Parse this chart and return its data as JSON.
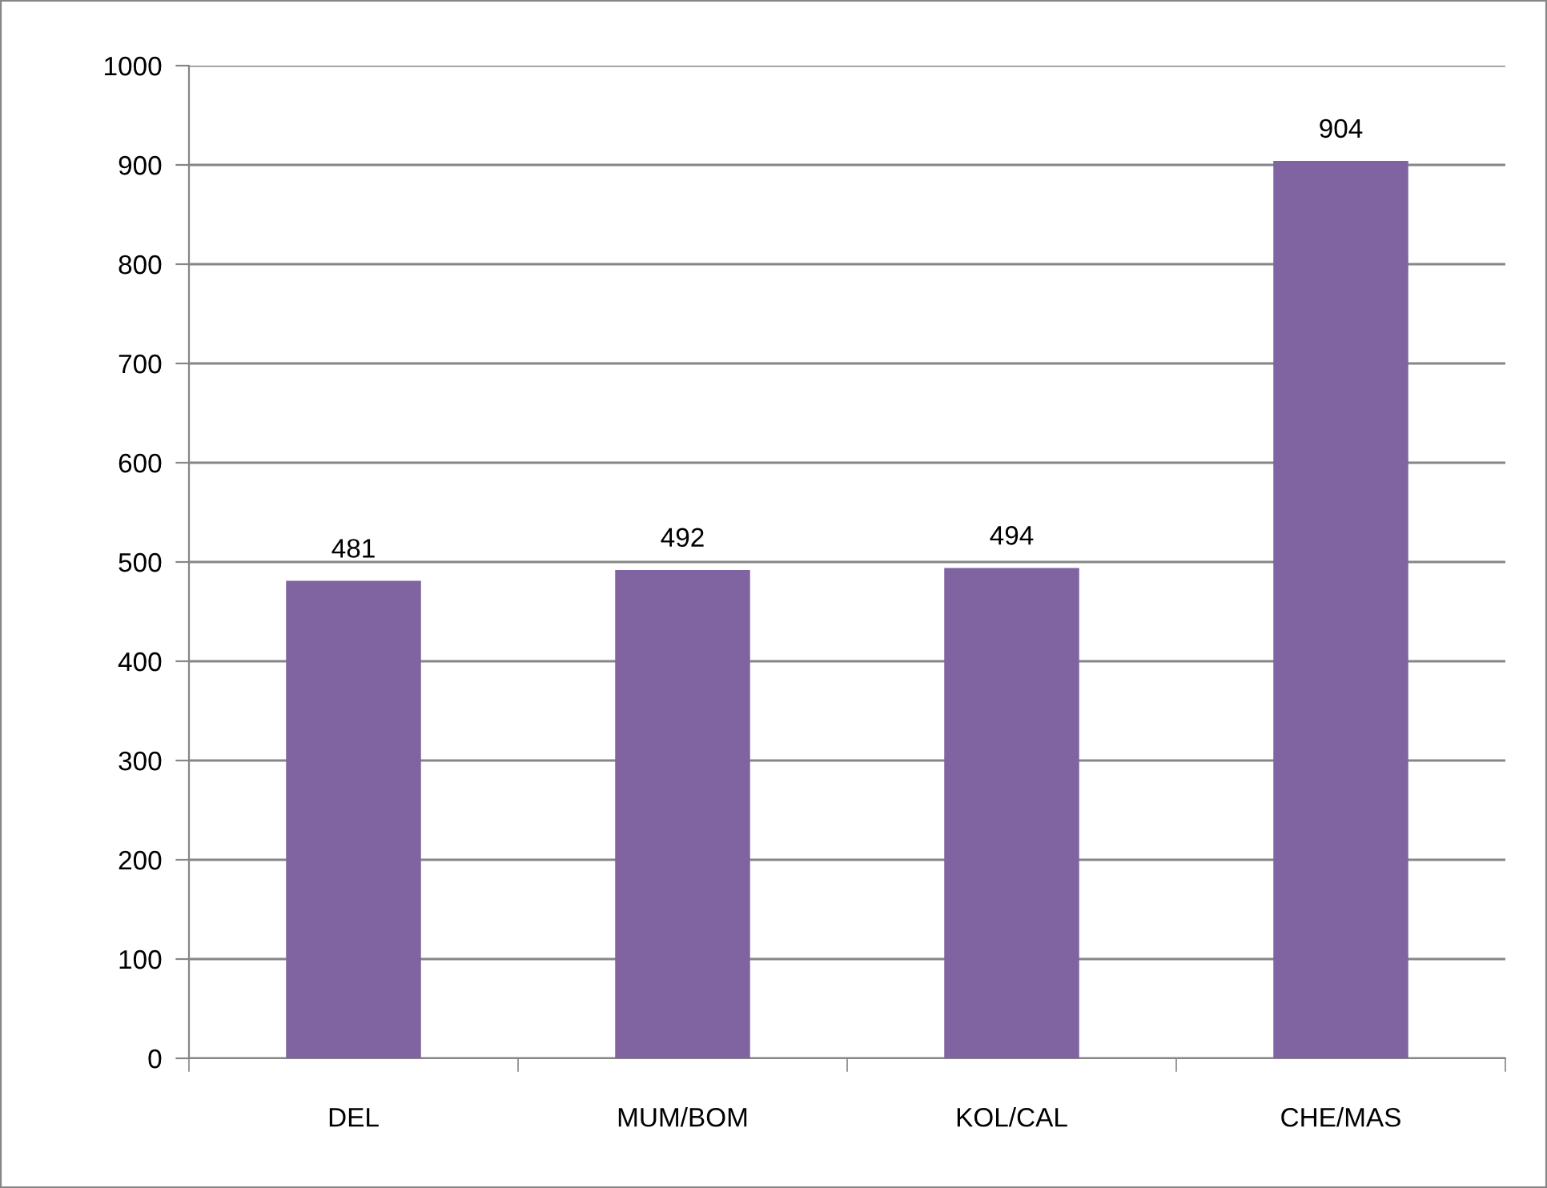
{
  "chart_data": {
    "type": "bar",
    "categories": [
      "DEL",
      "MUM/BOM",
      "KOL/CAL",
      "CHE/MAS"
    ],
    "values": [
      481,
      492,
      494,
      904
    ],
    "color": "#8064a2",
    "ylim": [
      0,
      1000
    ],
    "yticks": [
      0,
      100,
      200,
      300,
      400,
      500,
      600,
      700,
      800,
      900,
      1000
    ],
    "grid": "y",
    "data_labels": true
  }
}
